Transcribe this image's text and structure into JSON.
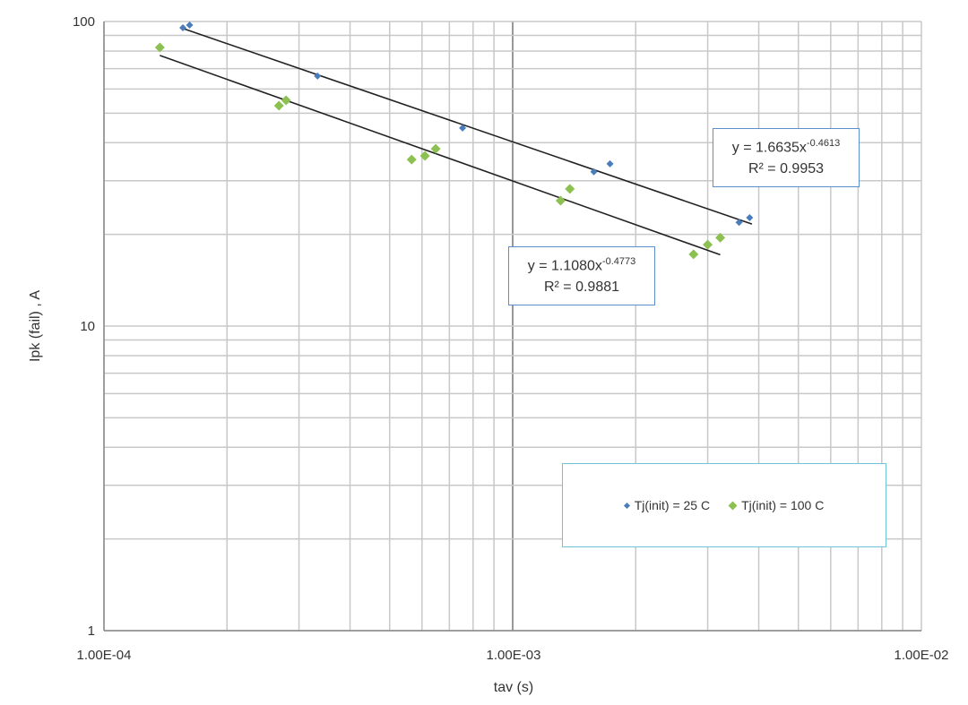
{
  "chart_data": {
    "type": "scatter",
    "xlabel": "tav (s)",
    "ylabel": "Ipk (fail) , A",
    "xscale": "log",
    "yscale": "log",
    "xlim": [
      0.0001,
      0.01
    ],
    "ylim": [
      1,
      100
    ],
    "x_ticks": [
      "1.00E-04",
      "1.00E-03",
      "1.00E-02"
    ],
    "y_ticks": [
      "1",
      "10",
      "100"
    ],
    "grid": true,
    "legend_position": "bottom-right",
    "series": [
      {
        "name": "Tj(init) = 25 C",
        "color": "#4a7ebb",
        "marker": "diamond",
        "x": [
          0.000156,
          0.000162,
          0.000333,
          0.000754,
          0.00158,
          0.00173,
          0.00358,
          0.0038
        ],
        "y": [
          95.4,
          97.3,
          66.2,
          44.7,
          32.1,
          34.1,
          21.9,
          22.7
        ],
        "trendline": {
          "type": "power",
          "a": 1.6635,
          "b": -0.4613,
          "equation": "y = 1.6635x",
          "exponent": "-0.4613",
          "r2": "R² = 0.9953",
          "x_range": [
            0.000156,
            0.00385
          ]
        }
      },
      {
        "name": "Tj(init) = 100 C",
        "color": "#8cc152",
        "marker": "diamond",
        "x": [
          0.000137,
          0.000268,
          0.000279,
          0.000566,
          0.00061,
          0.000648,
          0.00131,
          0.00138,
          0.00277,
          0.003,
          0.00322
        ],
        "y": [
          82.2,
          52.9,
          55.1,
          35.2,
          36.2,
          38.2,
          25.8,
          28.2,
          17.2,
          18.5,
          19.5
        ],
        "trendline": {
          "type": "power",
          "a": 1.108,
          "b": -0.4773,
          "equation": "y = 1.1080x",
          "exponent": "-0.4773",
          "r2": "R² = 0.9881",
          "x_range": [
            0.000137,
            0.00322
          ]
        }
      }
    ]
  }
}
